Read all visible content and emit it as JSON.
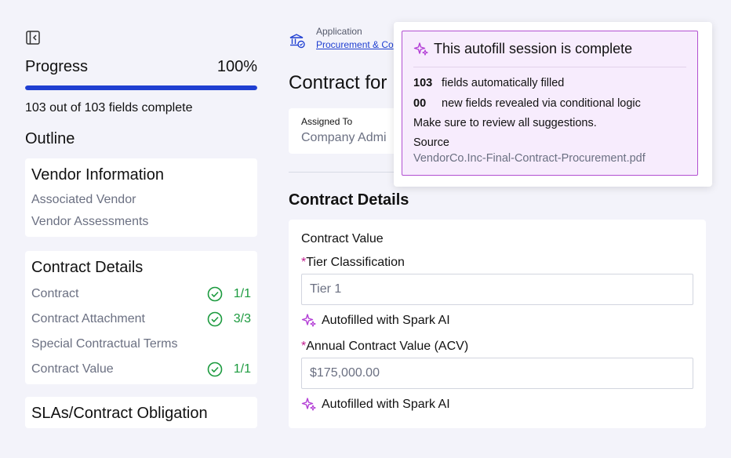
{
  "progress": {
    "label": "Progress",
    "percent_text": "100%",
    "fraction": 1.0,
    "fields_text": "103 out of 103 fields complete"
  },
  "outline": {
    "title": "Outline",
    "sections": [
      {
        "title": "Vendor Information",
        "items": [
          {
            "label": "Associated Vendor"
          },
          {
            "label": "Vendor Assessments"
          }
        ]
      },
      {
        "title": "Contract Details",
        "items": [
          {
            "label": "Contract",
            "count": "1/1"
          },
          {
            "label": "Contract Attachment",
            "count": "3/3"
          },
          {
            "label": "Special Contractual Terms"
          },
          {
            "label": "Contract Value",
            "count": "1/1"
          }
        ]
      },
      {
        "title": "SLAs/Contract Obligation",
        "items": []
      }
    ]
  },
  "header": {
    "app_label": "Application",
    "app_link": "Procurement & Co",
    "contract_title": "Contract for"
  },
  "assigned": {
    "label": "Assigned To",
    "value": "Company Admi"
  },
  "contract_details": {
    "title": "Contract Details",
    "subtitle": "Contract Value",
    "fields": [
      {
        "required_mark": "*",
        "label": "Tier Classification",
        "value": "Tier 1",
        "autofill": "Autofilled with Spark AI"
      },
      {
        "required_mark": "*",
        "label": "Annual Contract Value (ACV)",
        "value": "$175,000.00",
        "autofill": "Autofilled with Spark AI"
      }
    ]
  },
  "popup": {
    "title": "This autofill session is complete",
    "filled_count": "103",
    "filled_text": "fields automatically filled",
    "revealed_count": "00",
    "revealed_text": "new fields revealed via conditional logic",
    "note": "Make sure to review all suggestions.",
    "source_label": "Source",
    "source_file": "VendorCo.Inc-Final-Contract-Procurement.pdf"
  },
  "colors": {
    "accent": "#1f3fd1",
    "success": "#1b9a3e",
    "spark": "#b33fd6",
    "required": "#c01b8d"
  }
}
